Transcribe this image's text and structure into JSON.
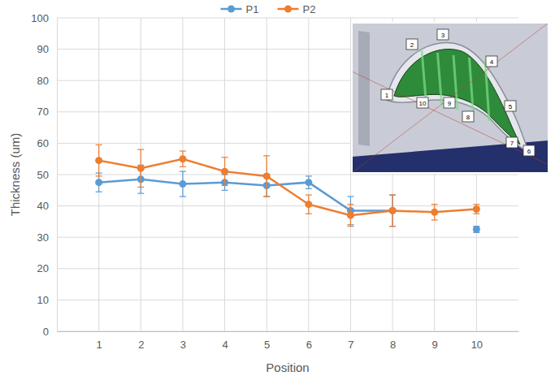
{
  "chart_data": {
    "type": "line",
    "x_label": "Position",
    "y_label": "Thickness (um)",
    "categories": [
      "1",
      "2",
      "3",
      "4",
      "5",
      "6",
      "7",
      "8",
      "9",
      "10"
    ],
    "series": [
      {
        "name": "P1",
        "color": "#5b9bd5",
        "marker": "circle",
        "line_style": "solid",
        "values": [
          47.5,
          48.5,
          47,
          47.5,
          46.5,
          47.5,
          38.5,
          38.5,
          null,
          32.5
        ],
        "errors": [
          3,
          4.5,
          4,
          2.5,
          3.5,
          2,
          4.5,
          5,
          null,
          1
        ]
      },
      {
        "name": "P2",
        "color": "#ed7d31",
        "marker": "circle",
        "line_style": "solid",
        "values": [
          54.5,
          52,
          55,
          51,
          49.5,
          40.5,
          37,
          38.5,
          38,
          39
        ],
        "errors": [
          5,
          6,
          2.5,
          4.5,
          6.5,
          3,
          3.5,
          5,
          2.5,
          1.5
        ]
      }
    ],
    "ylim": [
      0,
      100
    ],
    "yticks": [
      0,
      10,
      20,
      30,
      40,
      50,
      60,
      70,
      80,
      90,
      100
    ],
    "grid": true,
    "legend": "top",
    "inset_labels": [
      "1",
      "2",
      "3",
      "4",
      "5",
      "6",
      "7",
      "8",
      "9",
      "10"
    ]
  }
}
